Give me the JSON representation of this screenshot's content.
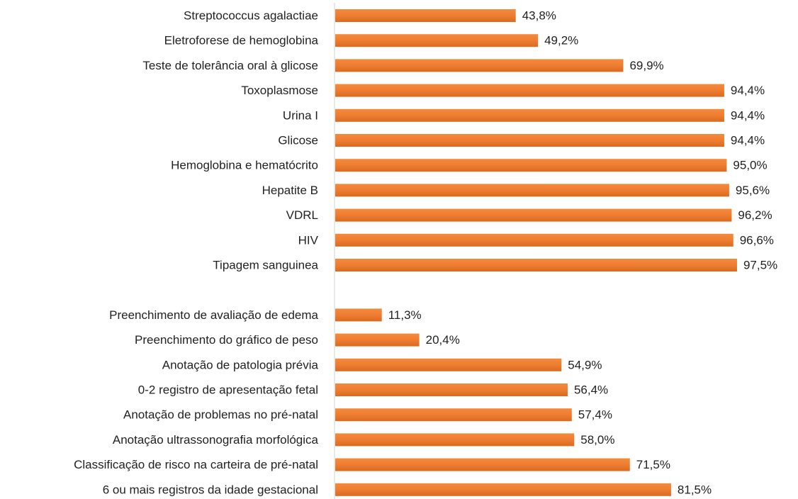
{
  "chart_data": {
    "type": "barh",
    "categories": [
      "Streptococcus agalactiae",
      "Eletroforese de hemoglobina",
      "Teste de tolerância oral à glicose",
      "Toxoplasmose",
      "Urina I",
      "Glicose",
      "Hemoglobina e hematócrito",
      "Hepatite B",
      "VDRL",
      "HIV",
      "Tipagem sanguinea",
      null,
      "Preenchimento de avaliação de edema",
      "Preenchimento do gráfico de peso",
      "Anotação de patologia prévia",
      "0-2 registro de apresentação fetal",
      "Anotação de problemas no pré-natal",
      "Anotação ultrassonografia morfológica",
      "Classificação de risco na carteira de pré-natal",
      "6 ou mais registros da idade gestacional"
    ],
    "values": [
      43.8,
      49.2,
      69.9,
      94.4,
      94.4,
      94.4,
      95.0,
      95.6,
      96.2,
      96.6,
      97.5,
      null,
      11.3,
      20.4,
      54.9,
      56.4,
      57.4,
      58.0,
      71.5,
      81.5
    ],
    "value_labels": [
      "43,8%",
      "49,2%",
      "69,9%",
      "94,4%",
      "94,4%",
      "94,4%",
      "95,0%",
      "95,6%",
      "96,2%",
      "96,6%",
      "97,5%",
      null,
      "11,3%",
      "20,4%",
      "54,9%",
      "56,4%",
      "57,4%",
      "58,0%",
      "71,5%",
      "81,5%"
    ],
    "color": "#ee7d31",
    "xlim": [
      0,
      100
    ]
  }
}
